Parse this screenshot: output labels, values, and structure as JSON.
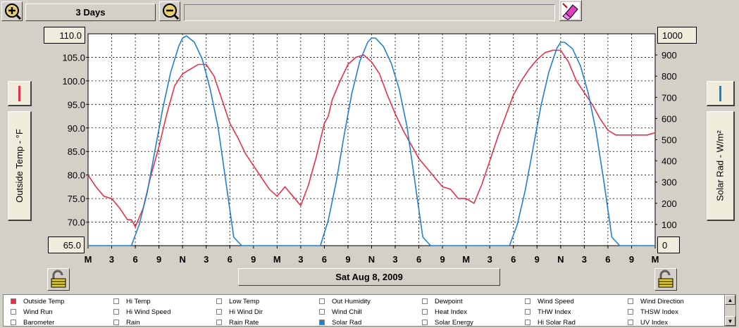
{
  "toolbar": {
    "zoom_in_icon": "magnifier-plus-icon",
    "zoom_out_icon": "magnifier-minus-icon",
    "span_label": "3 Days",
    "info_value": "",
    "eraser_icon": "eraser-icon"
  },
  "axes": {
    "left_label": "Outside Temp - °F",
    "right_label": "Solar Rad - W/m²",
    "left_top_value": "110.0",
    "left_bottom_value": "65.0",
    "right_top_value": "1000",
    "right_bottom_value": "0",
    "left_series_color": "#e8304a",
    "right_series_color": "#2080d0"
  },
  "date_label": "Sat Aug 8, 2009",
  "chart_data": {
    "type": "line",
    "x_tick_labels": [
      "M",
      "3",
      "6",
      "9",
      "N",
      "3",
      "6",
      "9",
      "M",
      "3",
      "6",
      "9",
      "N",
      "3",
      "6",
      "9",
      "M",
      "3",
      "6",
      "9",
      "N",
      "3",
      "6",
      "9",
      "M"
    ],
    "x_hours": [
      0,
      3,
      6,
      9,
      12,
      15,
      18,
      21,
      24,
      27,
      30,
      33,
      36,
      39,
      42,
      45,
      48,
      51,
      54,
      57,
      60,
      63,
      66,
      69,
      72
    ],
    "y_left": {
      "label": "Outside Temp - °F",
      "ticks": [
        "110.0",
        "105.0",
        "100.0",
        "95.0",
        "90.0",
        "85.0",
        "80.0",
        "75.0",
        "70.0",
        "65.0"
      ],
      "range": [
        65,
        110
      ]
    },
    "y_right": {
      "label": "Solar Rad - W/m²",
      "ticks": [
        "1000",
        "900",
        "800",
        "700",
        "600",
        "500",
        "400",
        "300",
        "200",
        "100",
        "0"
      ],
      "range": [
        0,
        1000
      ]
    },
    "grid": true,
    "series": [
      {
        "name": "Outside Temp",
        "color": "#e8304a",
        "axis": "left",
        "x": [
          0,
          1,
          2,
          3,
          4,
          5,
          5.5,
          6,
          7,
          8,
          9,
          10,
          11,
          12,
          13,
          14,
          15,
          16,
          17,
          18,
          19,
          20,
          21,
          22,
          23,
          24,
          25,
          26,
          27,
          28,
          29,
          30,
          30.5,
          31,
          32,
          33,
          34,
          35,
          36,
          37,
          38,
          39,
          40,
          41,
          42,
          43,
          44,
          45,
          46,
          47,
          48,
          49,
          50,
          51,
          52,
          53,
          54,
          54.5,
          55,
          56,
          57,
          58,
          59,
          60,
          61,
          62,
          63,
          64,
          65,
          66,
          67,
          68,
          69,
          70,
          71,
          72
        ],
        "y": [
          80.0,
          77.5,
          75.5,
          75.0,
          73.0,
          70.5,
          70.5,
          69.0,
          73.0,
          80.0,
          86.0,
          93.0,
          99.0,
          101.5,
          102.5,
          103.5,
          103.5,
          101.0,
          96.0,
          91.0,
          88.0,
          84.5,
          82.0,
          79.5,
          77.0,
          75.5,
          77.5,
          75.5,
          73.5,
          78.0,
          84.0,
          91.0,
          92.5,
          96.0,
          100.0,
          103.5,
          105.0,
          105.5,
          104.0,
          101.5,
          97.0,
          93.0,
          89.5,
          86.5,
          83.5,
          81.5,
          79.5,
          77.5,
          77.0,
          75.0,
          75.0,
          74.0,
          78.0,
          83.0,
          88.0,
          92.5,
          97.0,
          98.5,
          100.0,
          102.5,
          104.5,
          106.0,
          106.5,
          106.5,
          104.0,
          100.0,
          97.5,
          95.0,
          92.0,
          89.5,
          88.5,
          88.5,
          88.5,
          88.5,
          88.5,
          89.0
        ]
      },
      {
        "name": "Solar Rad",
        "color": "#2080d0",
        "axis": "right",
        "x": [
          0,
          5.5,
          6.5,
          7.5,
          8.5,
          9.5,
          10.5,
          11.5,
          12,
          12.5,
          13.5,
          14.5,
          15.5,
          16.5,
          17.5,
          18.5,
          19.5,
          24,
          29.5,
          30.5,
          31.5,
          32.5,
          33.5,
          34.5,
          35.5,
          36,
          36.5,
          37.5,
          38.5,
          39.5,
          40.5,
          41.5,
          42.5,
          43.5,
          48,
          53.5,
          54.5,
          55.5,
          56.5,
          57.5,
          58.5,
          59.5,
          60,
          60.5,
          61.5,
          62.5,
          63.5,
          64.5,
          65.5,
          66.5,
          67.5,
          72
        ],
        "y": [
          0,
          0,
          100,
          250,
          450,
          650,
          820,
          940,
          980,
          990,
          960,
          880,
          740,
          560,
          300,
          40,
          0,
          0,
          0,
          120,
          300,
          520,
          720,
          870,
          960,
          980,
          980,
          940,
          860,
          740,
          560,
          300,
          40,
          0,
          0,
          0,
          100,
          260,
          460,
          660,
          820,
          930,
          960,
          960,
          930,
          850,
          720,
          540,
          300,
          40,
          0,
          0
        ]
      }
    ]
  },
  "legend": {
    "items": [
      {
        "label": "Outside Temp",
        "checked": true,
        "color": "#e8304a"
      },
      {
        "label": "Hi Temp",
        "checked": false
      },
      {
        "label": "Low Temp",
        "checked": false
      },
      {
        "label": "Out Humidity",
        "checked": false
      },
      {
        "label": "Dewpoint",
        "checked": false
      },
      {
        "label": "Wind Speed",
        "checked": false
      },
      {
        "label": "Wind Direction",
        "checked": false
      },
      {
        "label": "Wind Run",
        "checked": false
      },
      {
        "label": "Hi Wind Speed",
        "checked": false
      },
      {
        "label": "Hi Wind Dir",
        "checked": false
      },
      {
        "label": "Wind Chill",
        "checked": false
      },
      {
        "label": "Heat Index",
        "checked": false
      },
      {
        "label": "THW Index",
        "checked": false
      },
      {
        "label": "THSW Index",
        "checked": false
      },
      {
        "label": "Barometer",
        "checked": false
      },
      {
        "label": "Rain",
        "checked": false
      },
      {
        "label": "Rain Rate",
        "checked": false
      },
      {
        "label": "Solar Rad",
        "checked": true,
        "color": "#2080d0"
      },
      {
        "label": "Solar Energy",
        "checked": false
      },
      {
        "label": "Hi Solar Rad",
        "checked": false
      },
      {
        "label": "UV Index",
        "checked": false
      }
    ]
  }
}
